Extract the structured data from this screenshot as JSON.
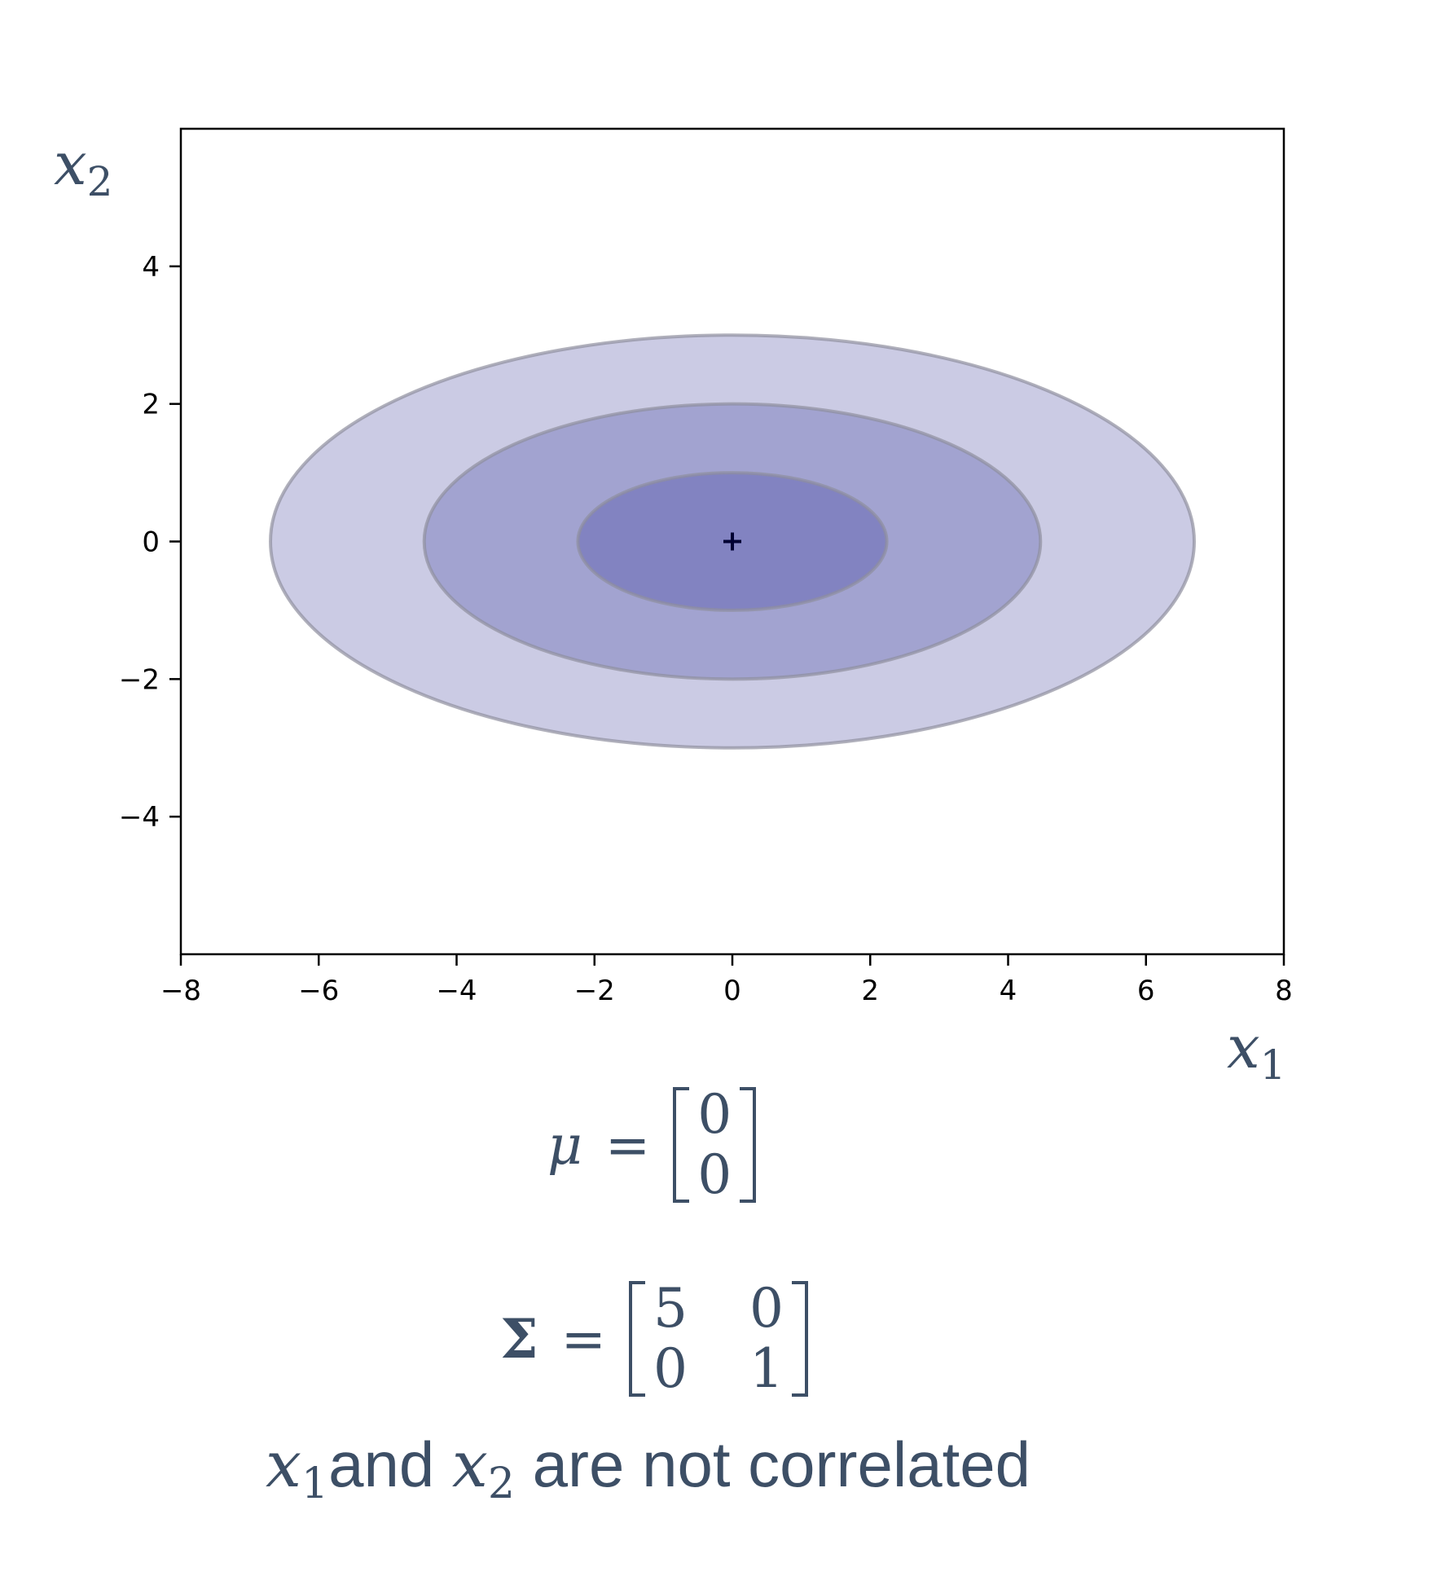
{
  "chart_data": {
    "type": "contour",
    "title": "",
    "xlabel": "x",
    "xlabel_sub": "1",
    "ylabel": "x",
    "ylabel_sub": "2",
    "xlim": [
      -8,
      8
    ],
    "ylim": [
      -6,
      6
    ],
    "x_ticks": [
      -8,
      -6,
      -4,
      -2,
      0,
      2,
      4,
      6,
      8
    ],
    "x_tick_labels": [
      "−8",
      "−6",
      "−4",
      "−2",
      "0",
      "2",
      "4",
      "6",
      "8"
    ],
    "y_ticks": [
      -4,
      -2,
      0,
      2,
      4
    ],
    "y_tick_labels": [
      "−4",
      "−2",
      "0",
      "2",
      "4"
    ],
    "grid": false,
    "mean": [
      0,
      0
    ],
    "mean_marker": "+",
    "ellipses": [
      {
        "sigma_level": 3,
        "semi_axis_x": 6.7,
        "semi_axis_y": 3.0,
        "fill": "#cbcbe4"
      },
      {
        "sigma_level": 2,
        "semi_axis_x": 4.47,
        "semi_axis_y": 2.0,
        "fill": "#a2a3d0"
      },
      {
        "sigma_level": 1,
        "semi_axis_x": 2.24,
        "semi_axis_y": 1.0,
        "fill": "#8283c1"
      }
    ],
    "edge_color": "#8e8e9e"
  },
  "equations": {
    "mu_symbol": "μ",
    "equals": "=",
    "mu_vector": [
      "0",
      "0"
    ],
    "sigma_symbol": "Σ",
    "sigma_matrix": [
      [
        "5",
        "0"
      ],
      [
        "0",
        "1"
      ]
    ]
  },
  "caption": {
    "var": "x",
    "sub1": "1",
    "sub2": "2",
    "word_and": "and",
    "rest": "are not correlated"
  }
}
